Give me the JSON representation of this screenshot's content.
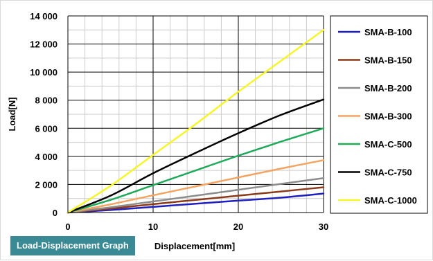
{
  "caption": "Load-Displacement Graph",
  "chart_data": {
    "type": "line",
    "title": "",
    "xlabel": "Displacement[mm]",
    "ylabel": "Load[N]",
    "xlim": [
      0,
      30
    ],
    "ylim": [
      0,
      14000
    ],
    "x_ticks": [
      0,
      10,
      20,
      30
    ],
    "x_tick_labels": [
      "0",
      "10",
      "20",
      "30"
    ],
    "y_ticks": [
      0,
      2000,
      4000,
      6000,
      8000,
      10000,
      12000,
      14000
    ],
    "y_tick_labels": [
      "0",
      "2 000",
      "4 000",
      "6 000",
      "8 000",
      "10 000",
      "12 000",
      "14 000"
    ],
    "grid": true,
    "legend_position": "right",
    "x": [
      0,
      5,
      10,
      15,
      20,
      25,
      30
    ],
    "series": [
      {
        "name": "SMA-B-100",
        "color": "#1f1fbf",
        "values": [
          0,
          180,
          400,
          630,
          850,
          1060,
          1350
        ]
      },
      {
        "name": "SMA-B-150",
        "color": "#8b3a1a",
        "values": [
          0,
          280,
          600,
          900,
          1200,
          1500,
          1800
        ]
      },
      {
        "name": "SMA-B-200",
        "color": "#8c8c8c",
        "values": [
          0,
          370,
          790,
          1200,
          1620,
          2040,
          2450
        ]
      },
      {
        "name": "SMA-B-300",
        "color": "#f4a460",
        "values": [
          0,
          580,
          1230,
          1860,
          2500,
          3130,
          3730
        ]
      },
      {
        "name": "SMA-C-500",
        "color": "#1faa59",
        "values": [
          0,
          900,
          1950,
          3000,
          4050,
          5050,
          6000
        ]
      },
      {
        "name": "SMA-C-750",
        "color": "#000000",
        "values": [
          0,
          1200,
          2800,
          4250,
          5650,
          6950,
          8050
        ]
      },
      {
        "name": "SMA-C-1000",
        "color": "#f5f52a",
        "values": [
          0,
          1900,
          4100,
          6300,
          8600,
          10800,
          13000
        ]
      }
    ]
  }
}
